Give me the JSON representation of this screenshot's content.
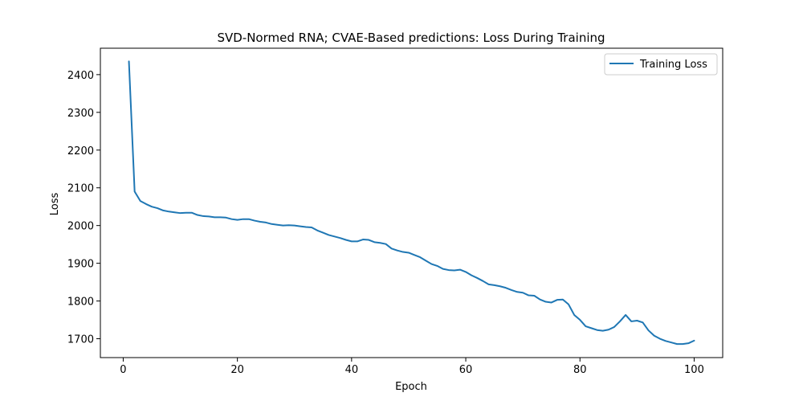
{
  "chart_data": {
    "type": "line",
    "title": "SVD-Normed RNA; CVAE-Based predictions: Loss During Training",
    "xlabel": "Epoch",
    "ylabel": "Loss",
    "xlim": [
      -4,
      105
    ],
    "ylim": [
      1650,
      2470
    ],
    "xticks": [
      0,
      20,
      40,
      60,
      80,
      100
    ],
    "yticks": [
      1700,
      1800,
      1900,
      2000,
      2100,
      2200,
      2300,
      2400
    ],
    "grid": false,
    "legend_position": "top-right",
    "series": [
      {
        "name": "Training Loss",
        "color": "#1f77b4",
        "x": [
          1,
          2,
          3,
          4,
          5,
          6,
          7,
          8,
          9,
          10,
          11,
          12,
          13,
          14,
          15,
          16,
          17,
          18,
          19,
          20,
          21,
          22,
          23,
          24,
          25,
          26,
          27,
          28,
          29,
          30,
          31,
          32,
          33,
          34,
          35,
          36,
          37,
          38,
          39,
          40,
          41,
          42,
          43,
          44,
          45,
          46,
          47,
          48,
          49,
          50,
          51,
          52,
          53,
          54,
          55,
          56,
          57,
          58,
          59,
          60,
          61,
          62,
          63,
          64,
          65,
          66,
          67,
          68,
          69,
          70,
          71,
          72,
          73,
          74,
          75,
          76,
          77,
          78,
          79,
          80,
          81,
          82,
          83,
          84,
          85,
          86,
          87,
          88,
          89,
          90,
          91,
          92,
          93,
          94,
          95,
          96,
          97,
          98,
          99,
          100
        ],
        "values": [
          2435,
          2090,
          2065,
          2057,
          2050,
          2046,
          2040,
          2037,
          2035,
          2033,
          2034,
          2034,
          2028,
          2025,
          2024,
          2022,
          2022,
          2021,
          2017,
          2015,
          2017,
          2017,
          2013,
          2010,
          2008,
          2004,
          2002,
          2000,
          2001,
          2000,
          1998,
          1996,
          1995,
          1987,
          1981,
          1975,
          1971,
          1967,
          1962,
          1958,
          1958,
          1963,
          1962,
          1956,
          1954,
          1951,
          1939,
          1934,
          1930,
          1928,
          1922,
          1916,
          1907,
          1898,
          1893,
          1885,
          1882,
          1881,
          1883,
          1877,
          1868,
          1861,
          1853,
          1844,
          1842,
          1839,
          1835,
          1829,
          1824,
          1822,
          1815,
          1814,
          1804,
          1798,
          1796,
          1803,
          1804,
          1791,
          1763,
          1750,
          1733,
          1728,
          1723,
          1721,
          1724,
          1731,
          1746,
          1763,
          1746,
          1748,
          1743,
          1722,
          1708,
          1700,
          1694,
          1690,
          1686,
          1686,
          1688,
          1695
        ]
      }
    ]
  }
}
